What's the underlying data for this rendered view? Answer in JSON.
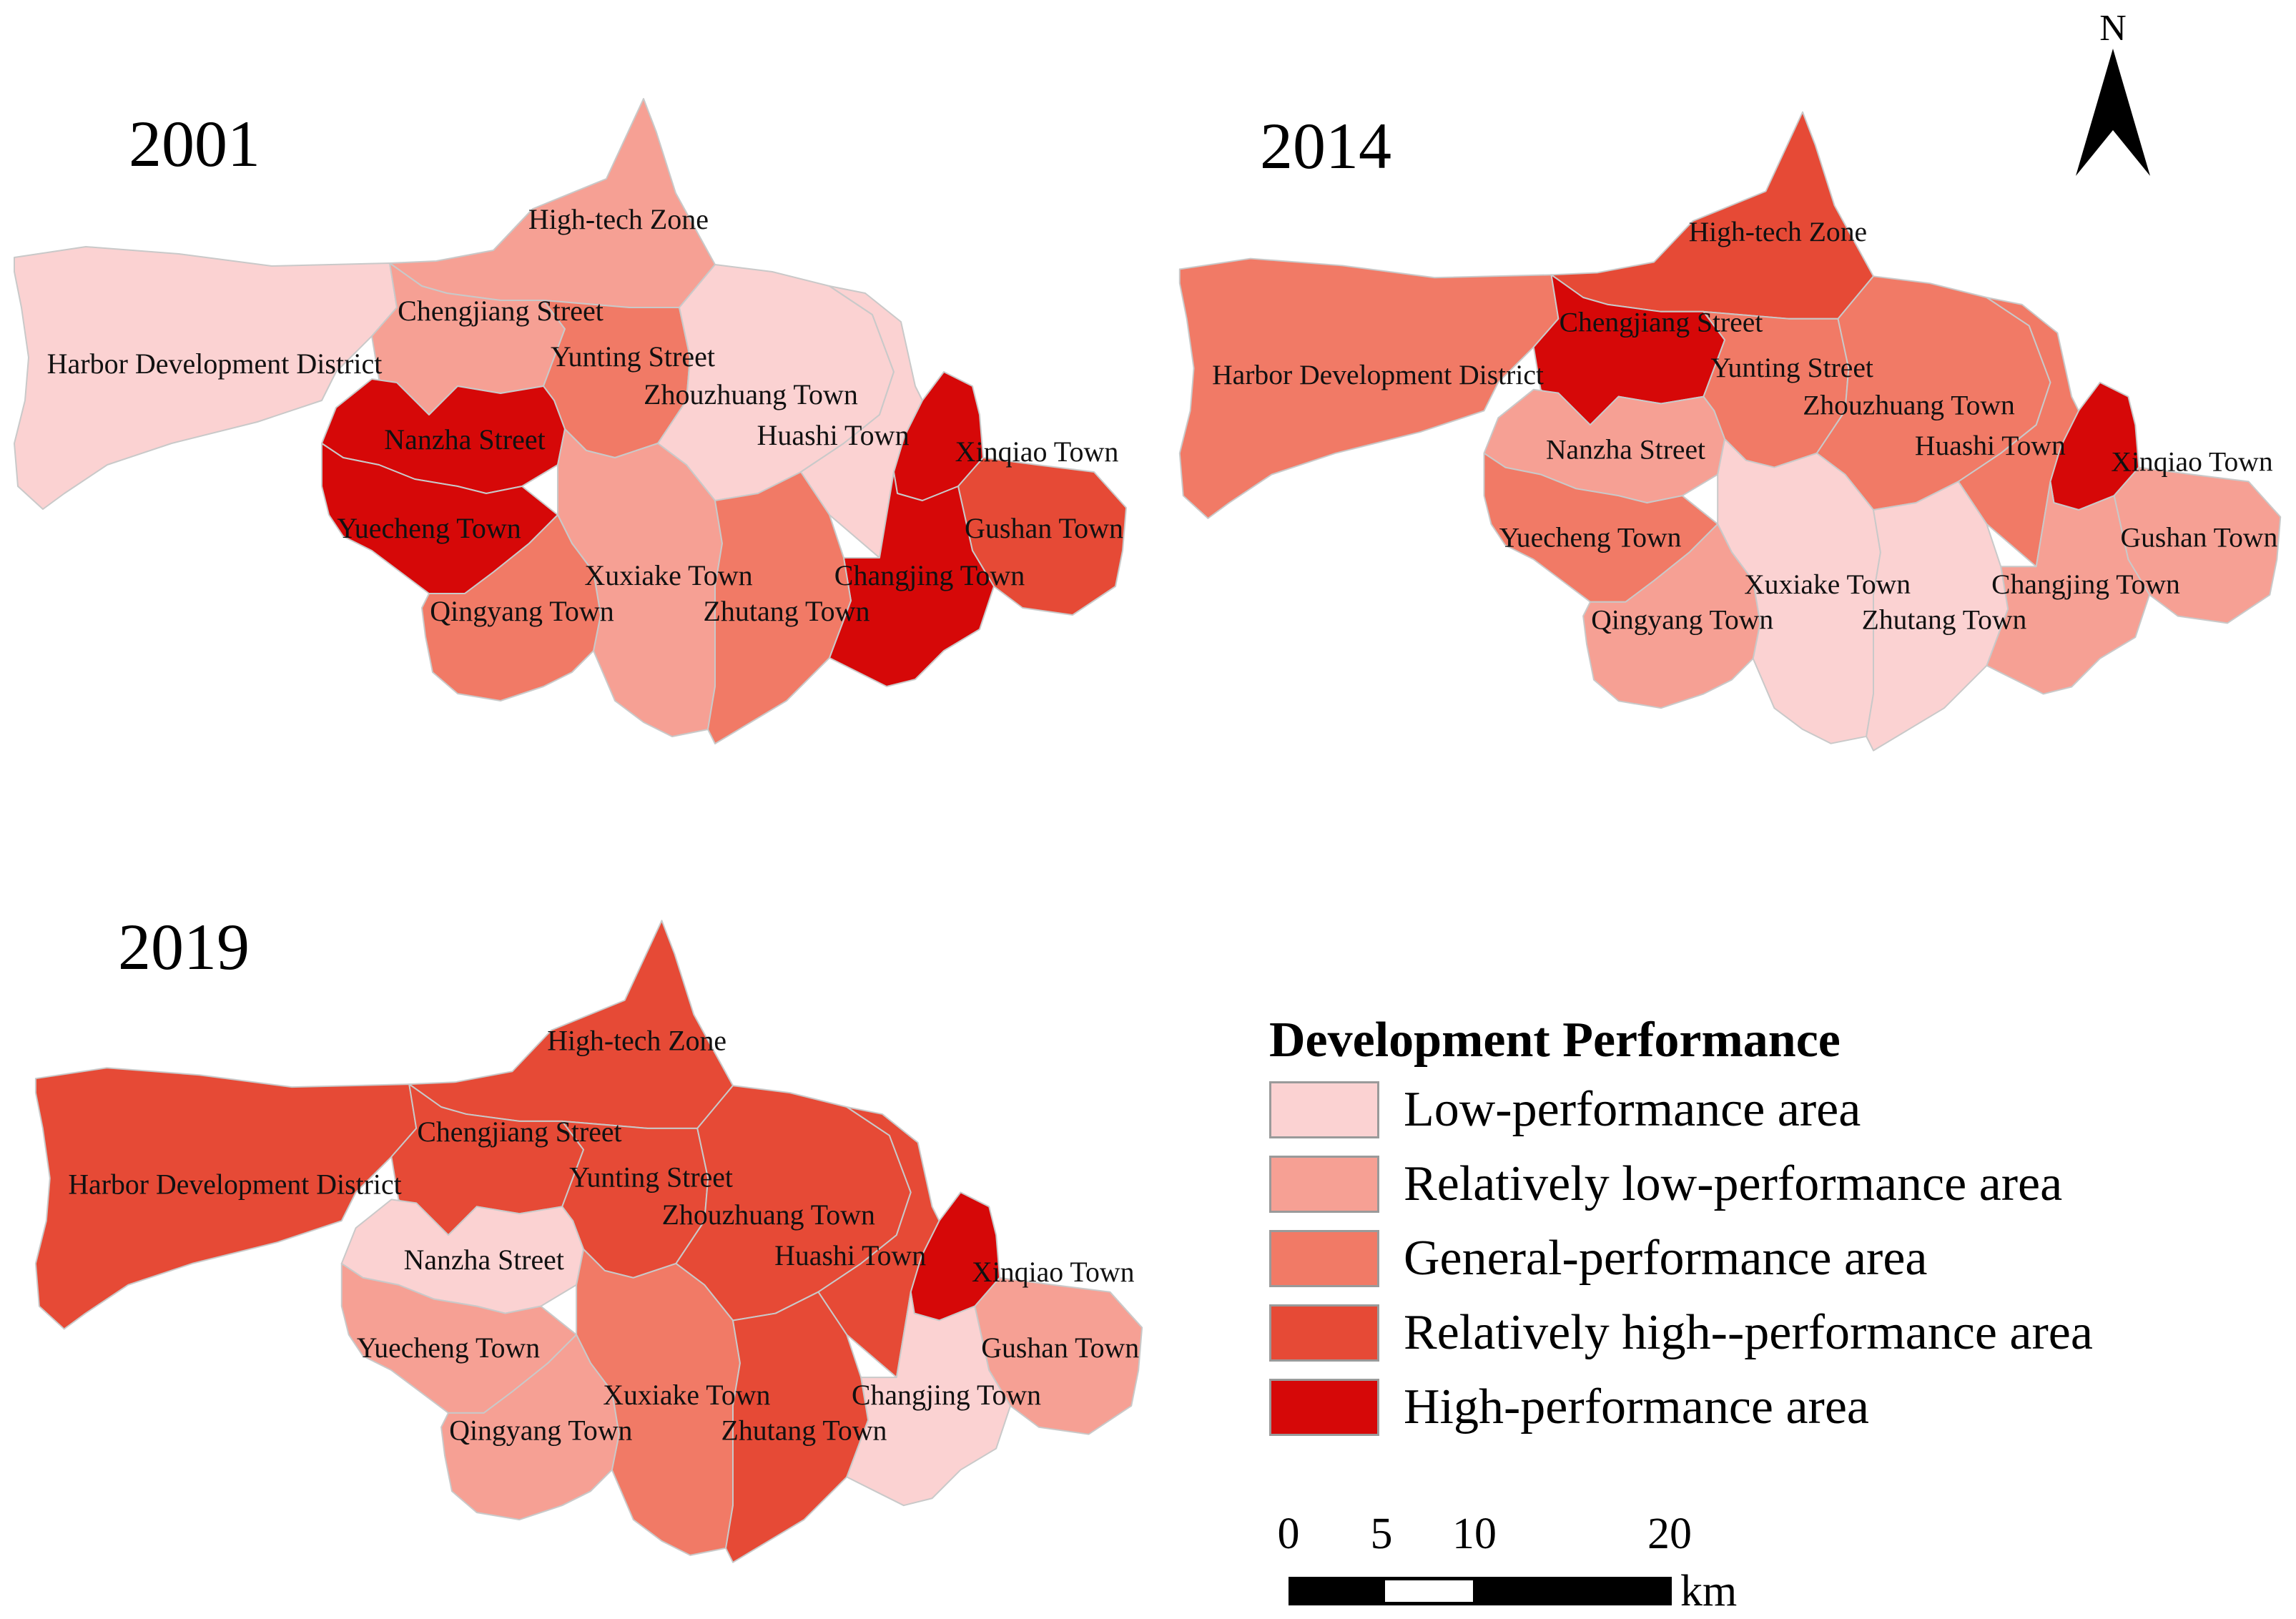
{
  "legend": {
    "title": "Development Performance",
    "classes": [
      {
        "label": "Low-performance area",
        "color": "#fbd2d2"
      },
      {
        "label": "Relatively low-performance area",
        "color": "#f6a094"
      },
      {
        "label": "General-performance area",
        "color": "#f17a66"
      },
      {
        "label": "Relatively high--performance area",
        "color": "#e64a36"
      },
      {
        "label": "High-performance area",
        "color": "#d60808"
      }
    ]
  },
  "north_arrow": {
    "label": "N"
  },
  "scale_bar": {
    "ticks": [
      "0",
      "5",
      "10",
      "20"
    ],
    "unit": "km"
  },
  "panels": [
    {
      "year": "2001",
      "regions": [
        {
          "name": "Harbor Development District",
          "class": 0
        },
        {
          "name": "High-tech Zone",
          "class": 1
        },
        {
          "name": "Chengjiang Street",
          "class": 1
        },
        {
          "name": "Yunting Street",
          "class": 2
        },
        {
          "name": "Zhouzhuang Town",
          "class": 0
        },
        {
          "name": "Huashi Town",
          "class": 0
        },
        {
          "name": "Xinqiao Town",
          "class": 4
        },
        {
          "name": "Nanzha Street",
          "class": 4
        },
        {
          "name": "Yuecheng Town",
          "class": 4
        },
        {
          "name": "Gushan Town",
          "class": 3
        },
        {
          "name": "Xuxiake Town",
          "class": 1
        },
        {
          "name": "Changjing Town",
          "class": 4
        },
        {
          "name": "Qingyang Town",
          "class": 2
        },
        {
          "name": "Zhutang Town",
          "class": 2
        }
      ]
    },
    {
      "year": "2014",
      "regions": [
        {
          "name": "Harbor Development District",
          "class": 2
        },
        {
          "name": "High-tech Zone",
          "class": 3
        },
        {
          "name": "Chengjiang Street",
          "class": 4
        },
        {
          "name": "Yunting Street",
          "class": 2
        },
        {
          "name": "Zhouzhuang Town",
          "class": 2
        },
        {
          "name": "Huashi Town",
          "class": 2
        },
        {
          "name": "Xinqiao Town",
          "class": 4
        },
        {
          "name": "Nanzha Street",
          "class": 1
        },
        {
          "name": "Yuecheng Town",
          "class": 2
        },
        {
          "name": "Gushan Town",
          "class": 1
        },
        {
          "name": "Xuxiake Town",
          "class": 0
        },
        {
          "name": "Changjing Town",
          "class": 1
        },
        {
          "name": "Qingyang Town",
          "class": 1
        },
        {
          "name": "Zhutang Town",
          "class": 0
        }
      ]
    },
    {
      "year": "2019",
      "regions": [
        {
          "name": "Harbor Development District",
          "class": 3
        },
        {
          "name": "High-tech Zone",
          "class": 3
        },
        {
          "name": "Chengjiang Street",
          "class": 3
        },
        {
          "name": "Yunting Street",
          "class": 3
        },
        {
          "name": "Zhouzhuang Town",
          "class": 3
        },
        {
          "name": "Huashi Town",
          "class": 3
        },
        {
          "name": "Xinqiao Town",
          "class": 4
        },
        {
          "name": "Nanzha Street",
          "class": 0
        },
        {
          "name": "Yuecheng Town",
          "class": 1
        },
        {
          "name": "Gushan Town",
          "class": 1
        },
        {
          "name": "Xuxiake Town",
          "class": 2
        },
        {
          "name": "Changjing Town",
          "class": 0
        },
        {
          "name": "Qingyang Town",
          "class": 1
        },
        {
          "name": "Zhutang Town",
          "class": 3
        }
      ]
    }
  ]
}
